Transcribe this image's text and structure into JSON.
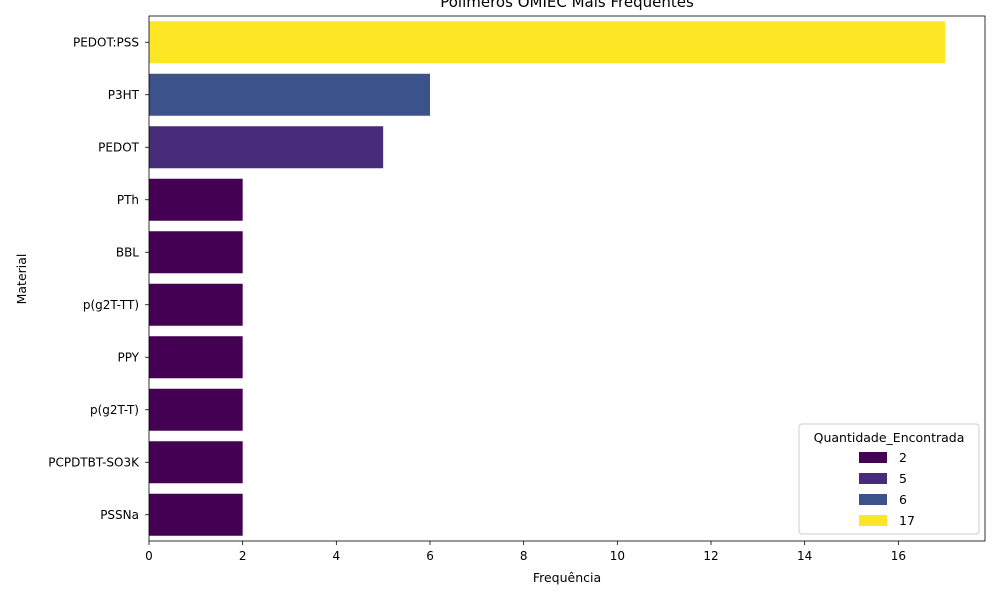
{
  "chart_data": {
    "type": "bar",
    "orientation": "horizontal",
    "title": "Polímeros OMIEC Mais Frequentes",
    "xlabel": "Frequência",
    "ylabel": "Material",
    "categories": [
      "PEDOT:PSS",
      "P3HT",
      "PEDOT",
      "PTh",
      "BBL",
      "p(g2T-TT)",
      "PPY",
      "p(g2T-T)",
      "PCPDTBT-SO3K",
      "PSSNa"
    ],
    "values": [
      17,
      6,
      5,
      2,
      2,
      2,
      2,
      2,
      2,
      2
    ],
    "xlim": [
      0,
      17.85
    ],
    "xticks": [
      0,
      2,
      4,
      6,
      8,
      10,
      12,
      14,
      16
    ],
    "xtick_labels": [
      "0",
      "2",
      "4",
      "6",
      "8",
      "10",
      "12",
      "14",
      "16"
    ],
    "grid": false,
    "colors": {
      "2": "#440154",
      "5": "#472c7a",
      "6": "#3b528b",
      "17": "#fde725"
    },
    "legend": {
      "title": "Quantidade_Encontrada",
      "placement": "lower-right",
      "entries": [
        {
          "label": "2",
          "value": 2
        },
        {
          "label": "5",
          "value": 5
        },
        {
          "label": "6",
          "value": 6
        },
        {
          "label": "17",
          "value": 17
        }
      ]
    }
  }
}
